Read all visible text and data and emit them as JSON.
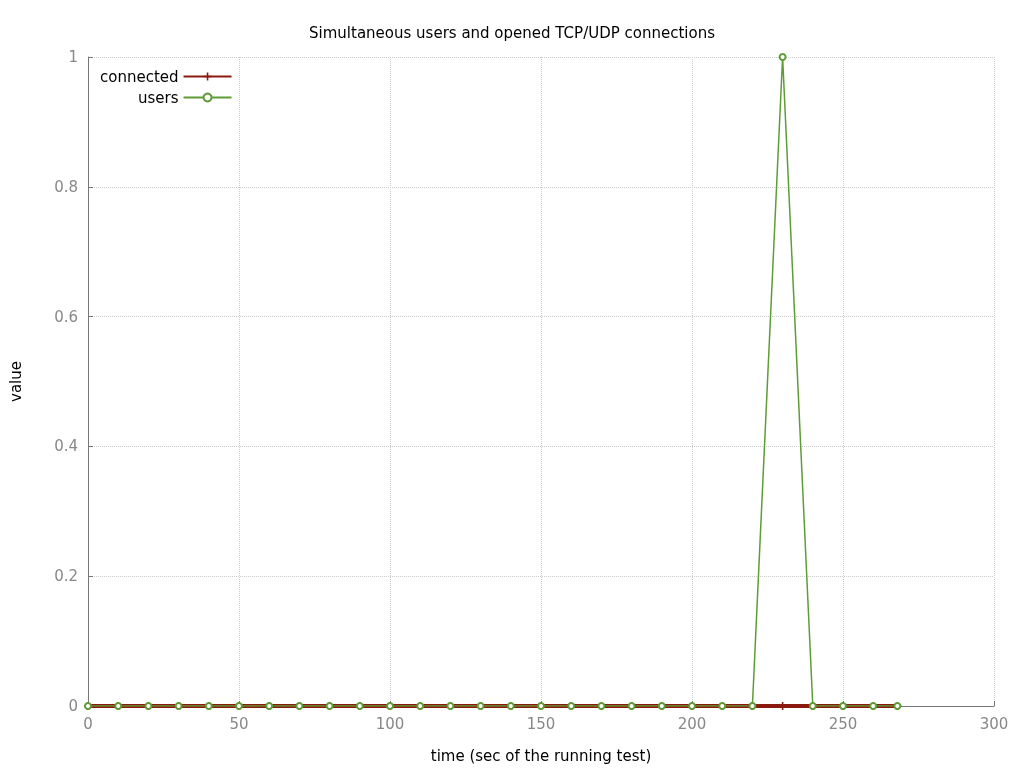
{
  "chart_data": {
    "type": "line",
    "title": "Simultaneous users and opened TCP/UDP connections",
    "xlabel": "time (sec of the running test)",
    "ylabel": "value",
    "x": [
      0,
      10,
      20,
      30,
      40,
      50,
      60,
      70,
      80,
      90,
      100,
      110,
      120,
      130,
      140,
      150,
      160,
      170,
      180,
      190,
      200,
      210,
      220,
      230,
      240,
      250,
      260,
      268
    ],
    "series": [
      {
        "name": "connected",
        "color": "#8b1a0e",
        "marker": "cross",
        "values": [
          0,
          0,
          0,
          0,
          0,
          0,
          0,
          0,
          0,
          0,
          0,
          0,
          0,
          0,
          0,
          0,
          0,
          0,
          0,
          0,
          0,
          0,
          0,
          0,
          0,
          0,
          0,
          0
        ]
      },
      {
        "name": "users",
        "color": "#5e9c36",
        "marker": "circle",
        "values": [
          0,
          0,
          0,
          0,
          0,
          0,
          0,
          0,
          0,
          0,
          0,
          0,
          0,
          0,
          0,
          0,
          0,
          0,
          0,
          0,
          0,
          0,
          0,
          1,
          0,
          0,
          0,
          0
        ]
      }
    ],
    "xlim": [
      0,
      300
    ],
    "xticks": [
      0,
      50,
      100,
      150,
      200,
      250,
      300
    ],
    "ylim": [
      0,
      1
    ],
    "yticks": [
      0,
      0.2,
      0.4,
      0.6,
      0.8,
      1
    ],
    "grid": true,
    "legend": "top left",
    "line_style": "solid"
  }
}
